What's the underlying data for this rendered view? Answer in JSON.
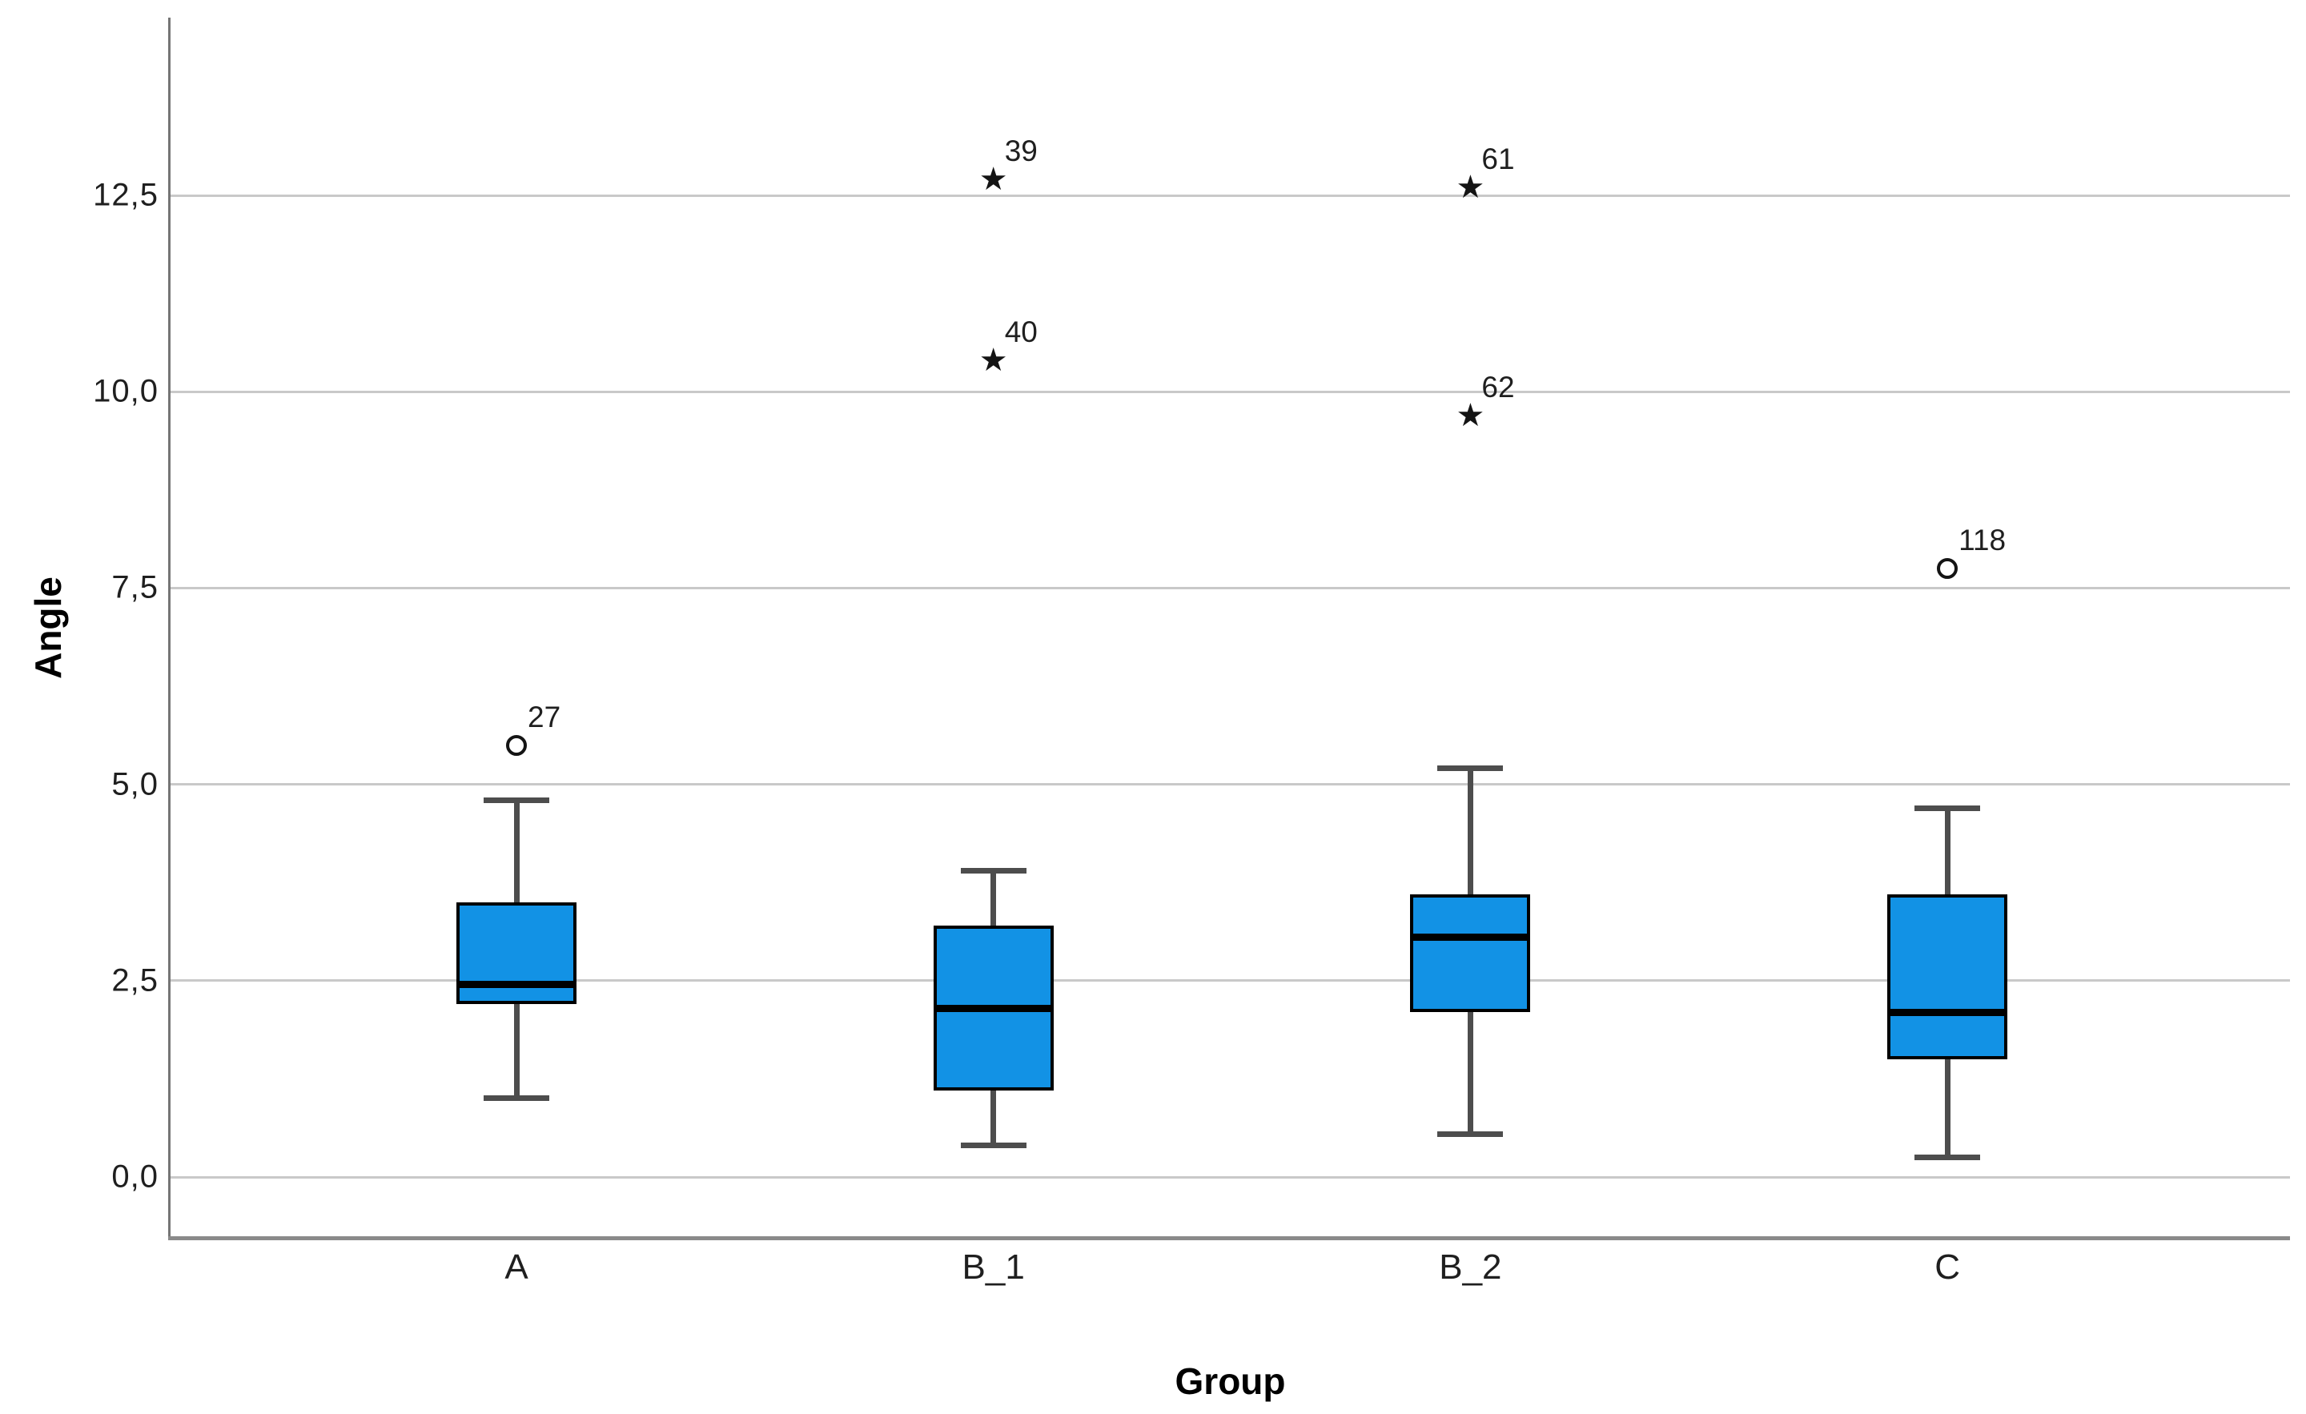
{
  "chart_data": {
    "type": "boxplot",
    "title": "",
    "xlabel": "Group",
    "ylabel": "Angle",
    "categories": [
      "A",
      "B_1",
      "B_2",
      "C"
    ],
    "y_axis": {
      "min": 0,
      "max": 12.5,
      "tick_interval": 2.5,
      "tick_labels": [
        "0,0",
        "2,5",
        "5,0",
        "7,5",
        "10,0",
        "12,5"
      ],
      "decimal_separator": ",",
      "grid": true
    },
    "legend": "none",
    "series": [
      {
        "category": "A",
        "whisker_low": 1.0,
        "q1": 2.2,
        "median": 2.45,
        "q3": 3.5,
        "whisker_high": 4.8,
        "outliers": [
          {
            "value": 5.5,
            "label": "27",
            "marker": "circle"
          }
        ]
      },
      {
        "category": "B_1",
        "whisker_low": 0.4,
        "q1": 1.1,
        "median": 2.15,
        "q3": 3.2,
        "whisker_high": 3.9,
        "outliers": [
          {
            "value": 10.4,
            "label": "40",
            "marker": "star"
          },
          {
            "value": 12.7,
            "label": "39",
            "marker": "star"
          }
        ]
      },
      {
        "category": "B_2",
        "whisker_low": 0.55,
        "q1": 2.1,
        "median": 3.05,
        "q3": 3.6,
        "whisker_high": 5.2,
        "outliers": [
          {
            "value": 9.7,
            "label": "62",
            "marker": "star"
          },
          {
            "value": 12.6,
            "label": "61",
            "marker": "star"
          }
        ]
      },
      {
        "category": "C",
        "whisker_low": 0.25,
        "q1": 1.5,
        "median": 2.1,
        "q3": 3.6,
        "whisker_high": 4.7,
        "outliers": [
          {
            "value": 7.75,
            "label": "118",
            "marker": "circle"
          }
        ]
      }
    ],
    "colors": {
      "box_fill": "#1292E5",
      "box_border": "#000000",
      "median": "#000000",
      "whisker": "#4D4D4D",
      "gridline": "#C9C9C9",
      "y_axis_line": "#757575",
      "x_axis_line": "#8A8A8A",
      "text": "#1F1F1F",
      "background": "#FFFFFF"
    }
  }
}
